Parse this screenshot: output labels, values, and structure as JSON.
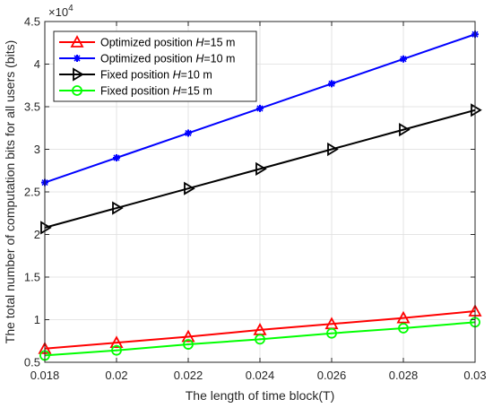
{
  "chart_data": {
    "type": "line",
    "xlabel": "The length of time block(T)",
    "ylabel": "The total number of computation bits for all users (bits)",
    "y_multiplier_label": "×10",
    "y_multiplier_exponent": "4",
    "x": [
      0.018,
      0.02,
      0.022,
      0.024,
      0.026,
      0.028,
      0.03
    ],
    "x_tick_labels": [
      "0.018",
      "0.02",
      "0.022",
      "0.024",
      "0.026",
      "0.028",
      "0.03"
    ],
    "xlim": [
      0.018,
      0.03
    ],
    "ylim": [
      0.5,
      4.5
    ],
    "y_ticks": [
      0.5,
      1,
      1.5,
      2,
      2.5,
      3,
      3.5,
      4,
      4.5
    ],
    "y_tick_labels": [
      "0.5",
      "1",
      "1.5",
      "2",
      "2.5",
      "3",
      "3.5",
      "4",
      "4.5"
    ],
    "grid": true,
    "legend_position": "top-left",
    "series": [
      {
        "name": "Optimized position H=15 m",
        "legend_prefix": "Optimized position ",
        "legend_var": "H",
        "legend_suffix": "=15 m",
        "color": "#ff0000",
        "marker": "triangle-up",
        "values": [
          0.66,
          0.73,
          0.8,
          0.88,
          0.95,
          1.02,
          1.1
        ]
      },
      {
        "name": "Optimized position H=10 m",
        "legend_prefix": "Optimized position ",
        "legend_var": "H",
        "legend_suffix": "=10 m",
        "color": "#0000ff",
        "marker": "star",
        "values": [
          2.61,
          2.9,
          3.19,
          3.48,
          3.77,
          4.06,
          4.35
        ]
      },
      {
        "name": "Fixed position H=10 m",
        "legend_prefix": "Fixed position ",
        "legend_var": "H",
        "legend_suffix": "=10 m",
        "color": "#000000",
        "marker": "triangle-right",
        "values": [
          2.08,
          2.31,
          2.54,
          2.77,
          3.0,
          3.23,
          3.46
        ]
      },
      {
        "name": "Fixed position H=15 m",
        "legend_prefix": "Fixed position ",
        "legend_var": "H",
        "legend_suffix": "=15 m",
        "color": "#00ff00",
        "marker": "circle",
        "values": [
          0.58,
          0.64,
          0.71,
          0.77,
          0.84,
          0.9,
          0.97
        ]
      }
    ]
  }
}
